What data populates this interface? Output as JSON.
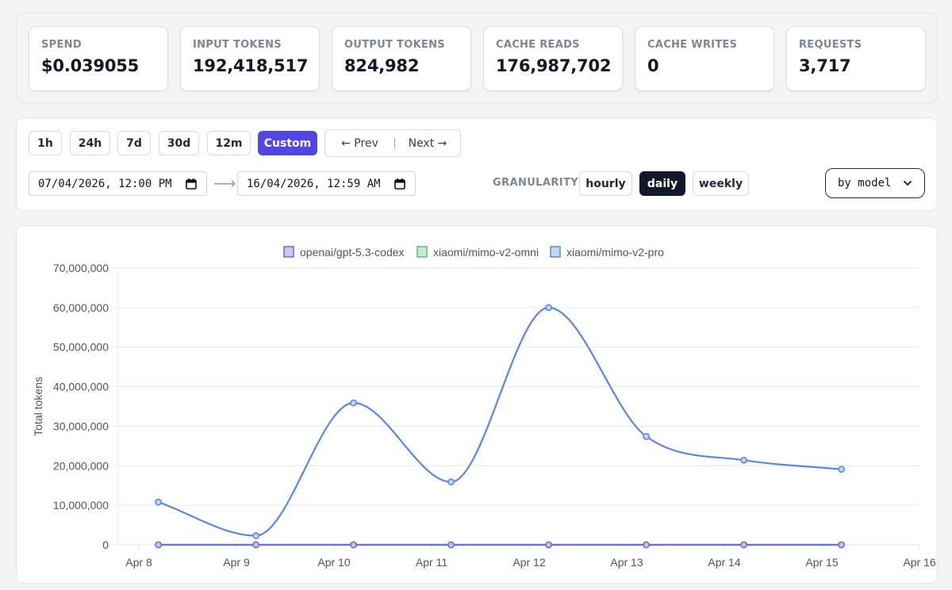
{
  "stats": [
    {
      "label": "SPEND",
      "value": "$0.039055"
    },
    {
      "label": "INPUT TOKENS",
      "value": "192,418,517"
    },
    {
      "label": "OUTPUT TOKENS",
      "value": "824,982"
    },
    {
      "label": "CACHE READS",
      "value": "176,987,702"
    },
    {
      "label": "CACHE WRITES",
      "value": "0"
    },
    {
      "label": "REQUESTS",
      "value": "3,717"
    }
  ],
  "range_buttons": [
    {
      "label": "1h"
    },
    {
      "label": "24h"
    },
    {
      "label": "7d"
    },
    {
      "label": "30d"
    },
    {
      "label": "12m"
    },
    {
      "label": "Custom",
      "active": true
    }
  ],
  "nav": {
    "prev": "← Prev",
    "next": "Next →"
  },
  "date_range": {
    "start": "07/04/2026, 12:00 PM",
    "arrow": "⟶",
    "end": "16/04/2026, 12:59 AM"
  },
  "granularity": {
    "label": "GRANULARITY",
    "options": [
      "hourly",
      "daily",
      "weekly"
    ],
    "selected": "daily"
  },
  "group_by": {
    "value": "by model"
  },
  "colors": {
    "accent": "#5046e5",
    "dark": "#111827"
  },
  "chart_data": {
    "type": "line",
    "ylabel": "Total tokens",
    "ylim": [
      0,
      70000000
    ],
    "yticks": [
      0,
      10000000,
      20000000,
      30000000,
      40000000,
      50000000,
      60000000,
      70000000
    ],
    "ytick_labels": [
      "0",
      "10,000,000",
      "20,000,000",
      "30,000,000",
      "40,000,000",
      "50,000,000",
      "60,000,000",
      "70,000,000"
    ],
    "xtick_labels": [
      "Apr 8",
      "Apr 9",
      "Apr 10",
      "Apr 11",
      "Apr 12",
      "Apr 13",
      "Apr 14",
      "Apr 15",
      "Apr 16"
    ],
    "xlim": [
      8,
      16
    ],
    "x": [
      8.2,
      9.2,
      10.2,
      11.2,
      12.2,
      13.2,
      14.2,
      15.2
    ],
    "series": [
      {
        "name": "openai/gpt-5.3-codex",
        "color": "#6b6ee0",
        "fill": "#c7c8f5",
        "values": [
          0,
          0,
          0,
          0,
          0,
          0,
          0,
          0
        ]
      },
      {
        "name": "xiaomi/mimo-v2-omni",
        "color": "#5fb87a",
        "fill": "#c9ebd3",
        "values": [
          0,
          0,
          0,
          0,
          0,
          0,
          0,
          0
        ]
      },
      {
        "name": "xiaomi/mimo-v2-pro",
        "color": "#5b87e0",
        "fill": "#c4d6f6",
        "values": [
          10800000,
          2300000,
          35900000,
          15900000,
          60000000,
          27400000,
          21400000,
          19100000
        ]
      }
    ]
  }
}
